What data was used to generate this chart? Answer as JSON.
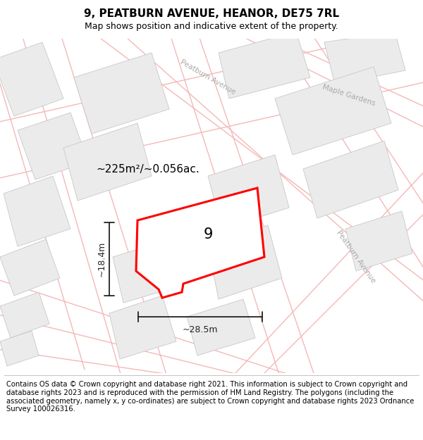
{
  "title": "9, PEATBURN AVENUE, HEANOR, DE75 7RL",
  "subtitle": "Map shows position and indicative extent of the property.",
  "footer": "Contains OS data © Crown copyright and database right 2021. This information is subject to Crown copyright and database rights 2023 and is reproduced with the permission of HM Land Registry. The polygons (including the associated geometry, namely x, y co-ordinates) are subject to Crown copyright and database rights 2023 Ordnance Survey 100026316.",
  "map_bg": "#ffffff",
  "area_label": "~225m²/~0.056ac.",
  "plot_number": "9",
  "dim_width": "~28.5m",
  "dim_height": "~18.4m",
  "road_label_right": "Peatburn Avenue",
  "road_label_top": "Peatburn Avenue",
  "road_label_maple": "Maple Gardens",
  "road_line_color": "#f5b8b8",
  "building_fill": "#ebebeb",
  "building_edge": "#c8c8c8",
  "highlight_fill": "#ffffff",
  "highlight_edge": "#ff0000",
  "highlight_lw": 2.2,
  "street_label_color": "#aaaaaa",
  "dim_color": "#222222",
  "title_fontsize": 11,
  "subtitle_fontsize": 9,
  "footer_fontsize": 7.2
}
